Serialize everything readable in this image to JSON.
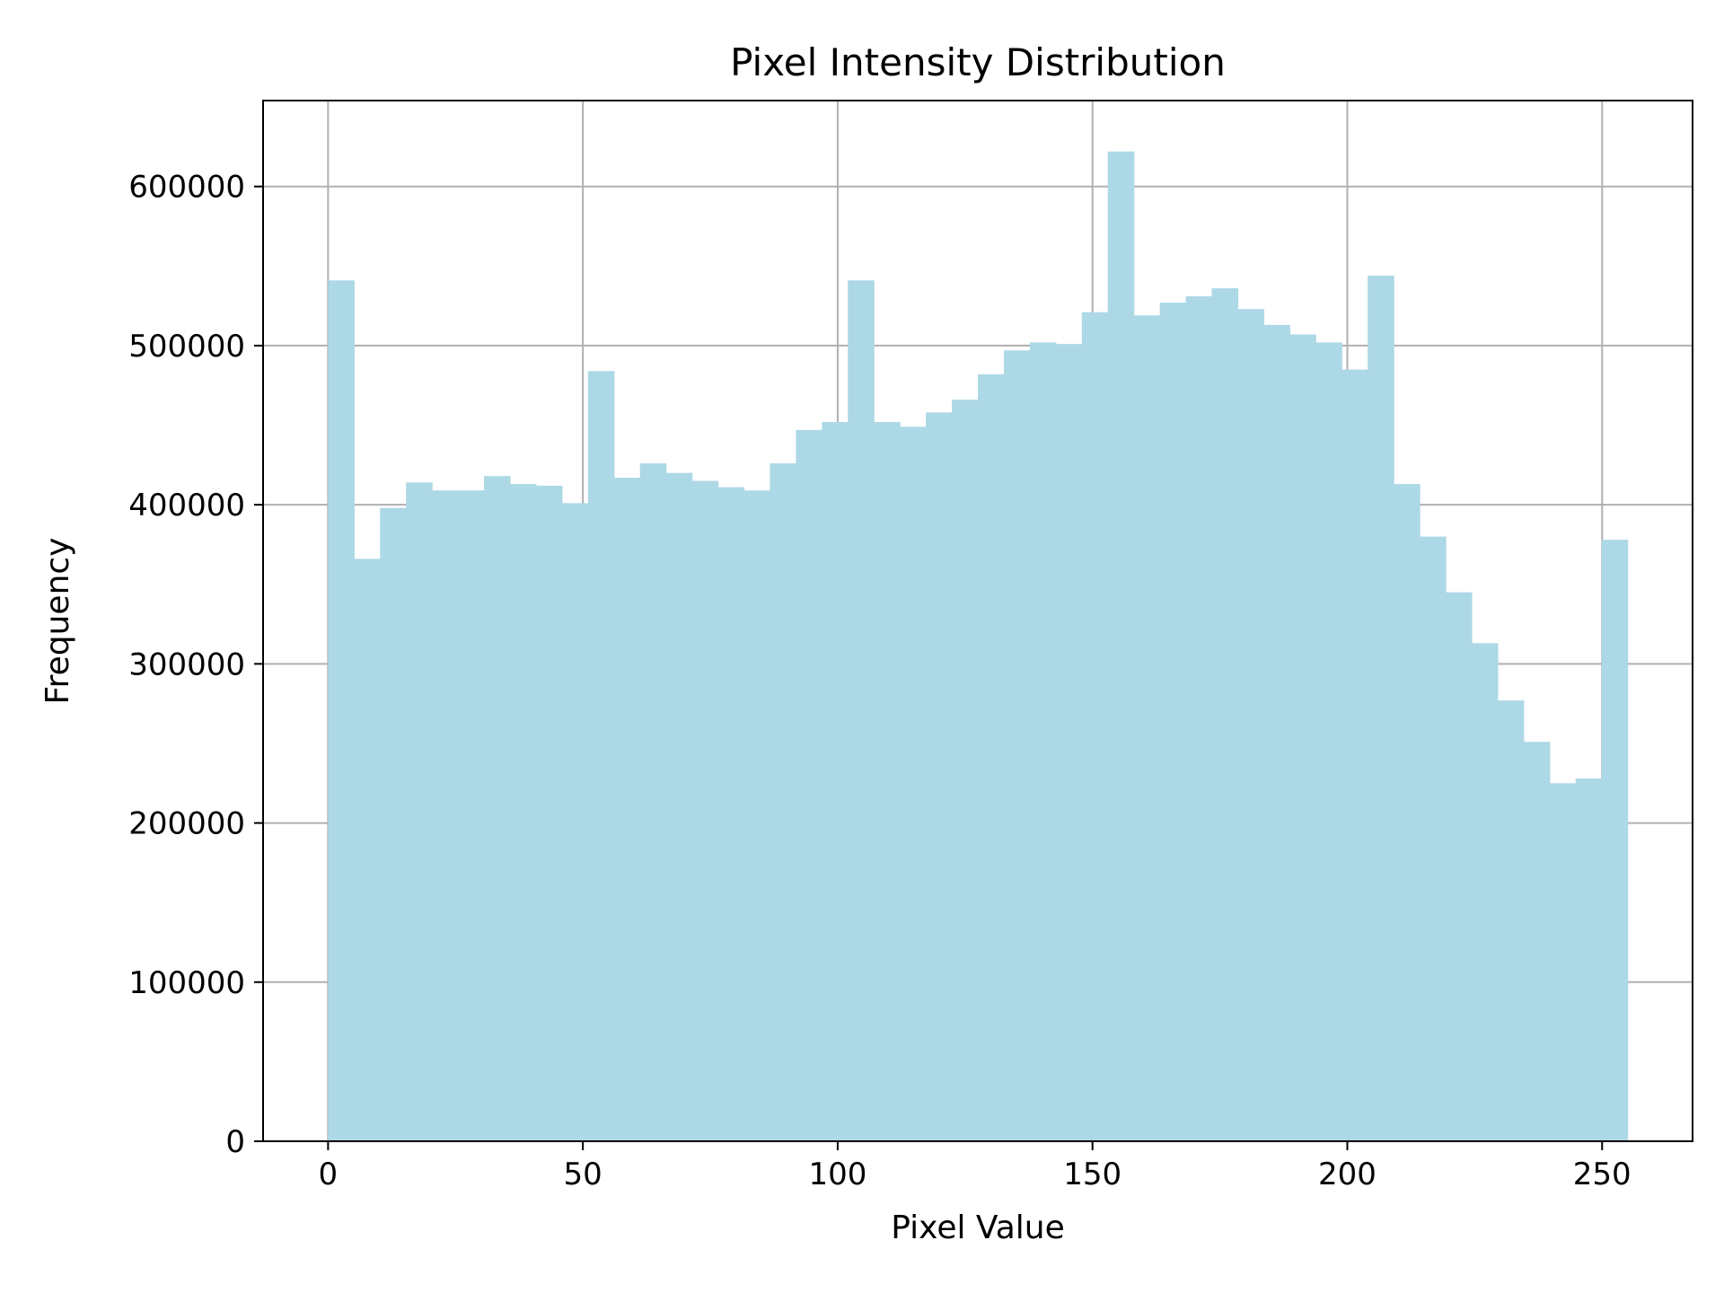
{
  "chart_data": {
    "type": "bar",
    "title": "Pixel Intensity Distribution",
    "xlabel": "Pixel Value",
    "ylabel": "Frequency",
    "xlim": [
      -12.75,
      267.75
    ],
    "ylim": [
      0,
      654000
    ],
    "x_ticks": [
      {
        "value": 0,
        "label": "0"
      },
      {
        "value": 50,
        "label": "50"
      },
      {
        "value": 100,
        "label": "100"
      },
      {
        "value": 150,
        "label": "150"
      },
      {
        "value": 200,
        "label": "200"
      },
      {
        "value": 250,
        "label": "250"
      }
    ],
    "y_ticks": [
      {
        "value": 0,
        "label": "0"
      },
      {
        "value": 100000,
        "label": "100000"
      },
      {
        "value": 200000,
        "label": "200000"
      },
      {
        "value": 300000,
        "label": "300000"
      },
      {
        "value": 400000,
        "label": "400000"
      },
      {
        "value": 500000,
        "label": "500000"
      },
      {
        "value": 600000,
        "label": "600000"
      }
    ],
    "grid": true,
    "color": "#add8e6",
    "bin_width": 5.1,
    "bin_starts": [
      0,
      5.1,
      10.2,
      15.3,
      20.4,
      25.5,
      30.6,
      35.7,
      40.8,
      45.9,
      51,
      56.1,
      61.2,
      66.3,
      71.4,
      76.5,
      81.6,
      86.7,
      91.8,
      96.9,
      102,
      107.1,
      112.2,
      117.3,
      122.4,
      127.5,
      132.6,
      137.7,
      142.8,
      147.9,
      153,
      158.1,
      163.2,
      168.3,
      173.4,
      178.5,
      183.6,
      188.7,
      193.8,
      198.9,
      204,
      209.1,
      214.2,
      219.3,
      224.4,
      229.5,
      234.6,
      239.7,
      244.8,
      249.9
    ],
    "values": [
      541000,
      366000,
      398000,
      414000,
      409000,
      409000,
      418000,
      413000,
      412000,
      401000,
      484000,
      417000,
      426000,
      420000,
      415000,
      411000,
      409000,
      426000,
      447000,
      452000,
      541000,
      452000,
      449000,
      458000,
      466000,
      482000,
      497000,
      502000,
      501000,
      521000,
      622000,
      519000,
      527000,
      531000,
      536000,
      523000,
      513000,
      507000,
      502000,
      485000,
      544000,
      413000,
      380000,
      345000,
      313000,
      277000,
      251000,
      225000,
      228000,
      378000
    ]
  }
}
